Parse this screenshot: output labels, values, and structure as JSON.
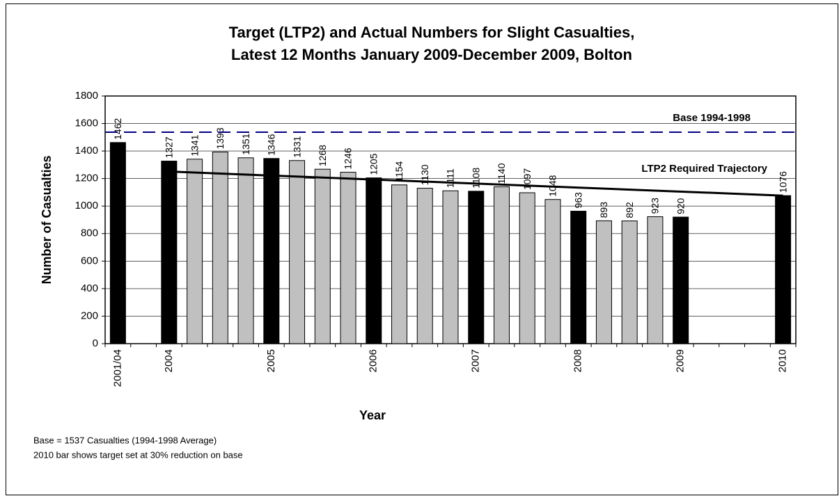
{
  "chart_data": {
    "type": "bar",
    "title": [
      "Target (LTP2) and Actual Numbers for Slight Casualties,",
      "Latest 12 Months January 2009-December 2009, Bolton"
    ],
    "y_label": "Number of Casualties",
    "x_label": "Year",
    "categories": [
      "2001/04",
      null,
      "2004",
      null,
      null,
      null,
      "2005",
      null,
      null,
      null,
      "2006",
      null,
      null,
      null,
      "2007",
      null,
      null,
      null,
      "2008",
      null,
      null,
      null,
      "2009",
      null,
      null,
      null,
      "2010"
    ],
    "values": [
      1462,
      null,
      1327,
      1341,
      1393,
      1351,
      1346,
      1331,
      1268,
      1246,
      1205,
      1154,
      1130,
      1111,
      1108,
      1140,
      1097,
      1048,
      963,
      893,
      892,
      923,
      920,
      null,
      null,
      null,
      1076
    ],
    "colors": [
      "#000000",
      null,
      "#000000",
      "#c0c0c0",
      "#c0c0c0",
      "#c0c0c0",
      "#000000",
      "#c0c0c0",
      "#c0c0c0",
      "#c0c0c0",
      "#000000",
      "#c0c0c0",
      "#c0c0c0",
      "#c0c0c0",
      "#000000",
      "#c0c0c0",
      "#c0c0c0",
      "#c0c0c0",
      "#000000",
      "#c0c0c0",
      "#c0c0c0",
      "#c0c0c0",
      "#000000",
      null,
      null,
      null,
      "#000000"
    ],
    "ylim": [
      0,
      1800
    ],
    "yticks": [
      0,
      200,
      400,
      600,
      800,
      1000,
      1200,
      1400,
      1600,
      1800
    ],
    "grid": true,
    "base_line": {
      "name": "Base 1994-1998",
      "value": 1537,
      "color": "#000080"
    },
    "trajectory": {
      "name": "LTP2 Required Trajectory",
      "start_category": "2004",
      "end_category": "2010",
      "values": [
        1253,
        1076
      ],
      "color": "#000000"
    },
    "notes": [
      "Base = 1537 Casualties (1994-1998 Average)",
      "2010 bar shows target set at 30% reduction on base"
    ]
  }
}
